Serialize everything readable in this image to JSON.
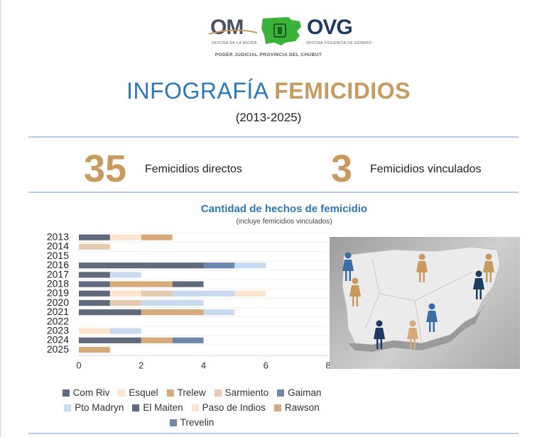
{
  "header": {
    "om_logo_text": "OM",
    "om_logo_sub": "OFICINA DE LA MUJER",
    "ovg_logo_text": "OVG",
    "ovg_logo_sub": "OFICINA VIOLENCIA DE GÉNERO",
    "institution": "PODER JUDICIAL PROVINCIA DEL CHUBUT"
  },
  "title": {
    "part1": "INFOGRAFÍA",
    "part2": "FEMICIDIOS",
    "years": "(2013-2025)"
  },
  "stats": [
    {
      "value": "35",
      "label": "Femicidios directos"
    },
    {
      "value": "3",
      "label": "Femicidios vinculados"
    }
  ],
  "colors": {
    "accent_gold": "#c89a5f",
    "accent_blue": "#2e78b7"
  },
  "chart_data": {
    "type": "bar",
    "orientation": "horizontal",
    "stacked": true,
    "title": "Cantidad de hechos de femicidio",
    "subtitle": "(incluye femicidios vinculados)",
    "categories": [
      "2013",
      "2014",
      "2015",
      "2016",
      "2017",
      "2018",
      "2019",
      "2020",
      "2021",
      "2022",
      "2023",
      "2024",
      "2025"
    ],
    "xlim": [
      0,
      8
    ],
    "xticks": [
      0,
      2,
      4,
      6,
      8
    ],
    "legend_position": "bottom",
    "series": [
      {
        "name": "Com Riv",
        "color": "#5f6b7c",
        "values": [
          1,
          0,
          0,
          4,
          1,
          1,
          1,
          1,
          2,
          0,
          0,
          2,
          0
        ]
      },
      {
        "name": "Esquel",
        "color": "#fce5cf",
        "values": [
          1,
          0,
          0,
          0,
          0,
          0,
          1,
          0,
          0,
          0,
          1,
          0,
          0
        ]
      },
      {
        "name": "Trelew",
        "color": "#d6ab7c",
        "values": [
          1,
          0,
          0,
          0,
          0,
          2,
          0,
          0,
          2,
          0,
          0,
          1,
          1
        ]
      },
      {
        "name": "Sarmiento",
        "color": "#e4cab0",
        "values": [
          0,
          1,
          0,
          0,
          0,
          0,
          1,
          1,
          0,
          0,
          0,
          0,
          0
        ]
      },
      {
        "name": "Gaiman",
        "color": "#6f86ad",
        "values": [
          0,
          0,
          0,
          1,
          0,
          0,
          0,
          0,
          0,
          0,
          0,
          0,
          0
        ]
      },
      {
        "name": "Pto Madryn",
        "color": "#c8daef",
        "values": [
          0,
          0,
          0,
          1,
          1,
          0,
          2,
          2,
          1,
          0,
          1,
          0,
          0
        ]
      },
      {
        "name": "El Maiten",
        "color": "#5f6b7c",
        "values": [
          0,
          0,
          0,
          0,
          0,
          1,
          0,
          0,
          0,
          0,
          0,
          0,
          0
        ]
      },
      {
        "name": "Paso de Indios",
        "color": "#fce5cf",
        "values": [
          0,
          0,
          0,
          0,
          0,
          0,
          1,
          0,
          0,
          0,
          0,
          0,
          0
        ]
      },
      {
        "name": "Rawson",
        "color": "#d6ab7c",
        "values": [
          0,
          0,
          0,
          0,
          0,
          0,
          0,
          0,
          0,
          0,
          0,
          0,
          0
        ]
      },
      {
        "name": "Trevelin",
        "color": "#6f86ad",
        "values": [
          0,
          0,
          0,
          0,
          0,
          0,
          0,
          0,
          0,
          0,
          0,
          1,
          0
        ]
      }
    ]
  },
  "map_figures": [
    {
      "color": "#3b6ea5"
    },
    {
      "color": "#c89a5f"
    },
    {
      "color": "#c89a5f"
    },
    {
      "color": "#c89a5f"
    },
    {
      "color": "#1e3c63"
    },
    {
      "color": "#3b6ea5"
    },
    {
      "color": "#1e3c63"
    },
    {
      "color": "#d6ab7c"
    }
  ]
}
